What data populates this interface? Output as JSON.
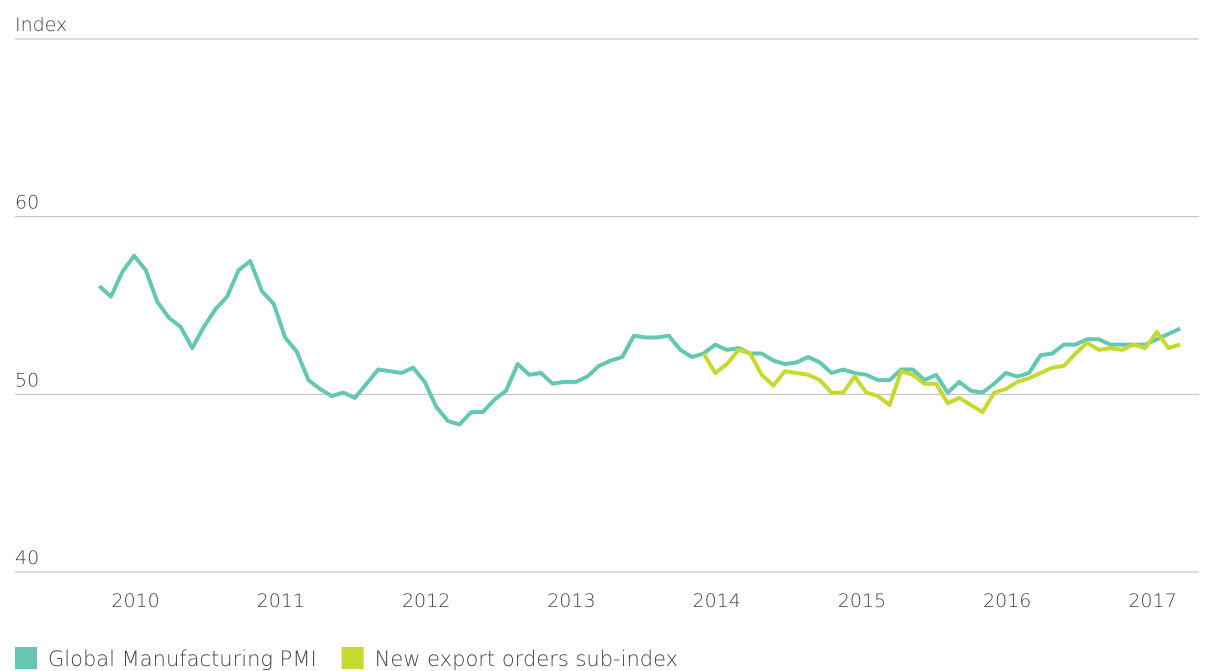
{
  "chart_data": {
    "type": "line",
    "x": [
      2009.75,
      2009.83,
      2009.91,
      2009.99,
      2010.07,
      2010.15,
      2010.23,
      2010.31,
      2010.39,
      2010.47,
      2010.55,
      2010.63,
      2010.71,
      2010.79,
      2010.87,
      2010.95,
      2011.03,
      2011.11,
      2011.19,
      2011.27,
      2011.35,
      2011.43,
      2011.51,
      2011.59,
      2011.67,
      2011.75,
      2011.83,
      2011.91,
      2011.99,
      2012.07,
      2012.15,
      2012.23,
      2012.31,
      2012.39,
      2012.47,
      2012.55,
      2012.63,
      2012.71,
      2012.79,
      2012.87,
      2012.95,
      2013.03,
      2013.11,
      2013.19,
      2013.27,
      2013.35,
      2013.43,
      2013.51,
      2013.59,
      2013.67,
      2013.75,
      2013.83,
      2013.91,
      2013.99,
      2014.07,
      2014.15,
      2014.23,
      2014.31,
      2014.39,
      2014.47,
      2014.55,
      2014.63,
      2014.71,
      2014.79,
      2014.87,
      2014.95,
      2015.03,
      2015.11,
      2015.19,
      2015.27,
      2015.35,
      2015.43,
      2015.51,
      2015.59,
      2015.67,
      2015.75,
      2015.83,
      2015.91,
      2015.99,
      2016.07,
      2016.15,
      2016.23,
      2016.31,
      2016.39,
      2016.47,
      2016.55,
      2016.63,
      2016.71,
      2016.79,
      2016.87,
      2016.95,
      2017.03,
      2017.11,
      2017.19
    ],
    "series": [
      {
        "name": "Global Manufacturing PMI",
        "color": "#63c7b2",
        "values": [
          56.1,
          55.5,
          56.9,
          57.8,
          57.0,
          55.2,
          54.3,
          53.8,
          52.6,
          53.8,
          54.8,
          55.5,
          57.0,
          57.5,
          55.8,
          55.1,
          53.2,
          52.4,
          50.8,
          50.3,
          49.9,
          50.1,
          49.8,
          50.6,
          51.4,
          51.3,
          51.2,
          51.5,
          50.7,
          49.3,
          48.5,
          48.3,
          49.0,
          49.0,
          49.7,
          50.2,
          51.7,
          51.1,
          51.2,
          50.6,
          50.7,
          50.7,
          51.0,
          51.6,
          51.9,
          52.1,
          53.3,
          53.2,
          53.2,
          53.3,
          52.5,
          52.1,
          52.3,
          52.8,
          52.5,
          52.6,
          52.3,
          52.3,
          51.9,
          51.7,
          51.8,
          52.1,
          51.8,
          51.2,
          51.4,
          51.2,
          51.1,
          50.8,
          50.8,
          51.4,
          51.4,
          50.8,
          51.1,
          50.1,
          50.7,
          50.2,
          50.1,
          50.6,
          51.2,
          51.0,
          51.2,
          52.2,
          52.3,
          52.8,
          52.8,
          53.1,
          53.1,
          52.8,
          52.8,
          52.8,
          52.8,
          53.1,
          53.4,
          53.7
        ]
      },
      {
        "name": "New export orders sub-index",
        "color": "#c6d92f",
        "values": [
          null,
          null,
          null,
          null,
          null,
          null,
          null,
          null,
          null,
          null,
          null,
          null,
          null,
          null,
          null,
          null,
          null,
          null,
          null,
          null,
          null,
          null,
          null,
          null,
          null,
          null,
          null,
          null,
          null,
          null,
          null,
          null,
          null,
          null,
          null,
          null,
          null,
          null,
          null,
          null,
          null,
          null,
          null,
          null,
          null,
          null,
          null,
          null,
          null,
          null,
          null,
          null,
          52.3,
          51.2,
          51.7,
          52.5,
          52.3,
          51.1,
          50.5,
          51.3,
          51.2,
          51.1,
          50.8,
          50.1,
          50.1,
          51.0,
          50.1,
          49.9,
          49.4,
          51.3,
          51.1,
          50.6,
          50.6,
          49.5,
          49.8,
          49.4,
          49.0,
          50.1,
          50.3,
          50.7,
          50.9,
          51.2,
          51.5,
          51.6,
          52.3,
          52.9,
          52.5,
          52.6,
          52.5,
          52.8,
          52.6,
          53.5,
          52.6,
          52.8
        ]
      }
    ],
    "xlim": [
      2009.17,
      2017.32
    ],
    "xticks": [
      2010,
      2011,
      2012,
      2013,
      2014,
      2015,
      2016,
      2017
    ],
    "ylim": [
      40,
      70
    ],
    "yticks": [
      40,
      50,
      60,
      {
        "value": 70,
        "label": "Index"
      }
    ],
    "grid": true,
    "legend": "bottom-left"
  }
}
